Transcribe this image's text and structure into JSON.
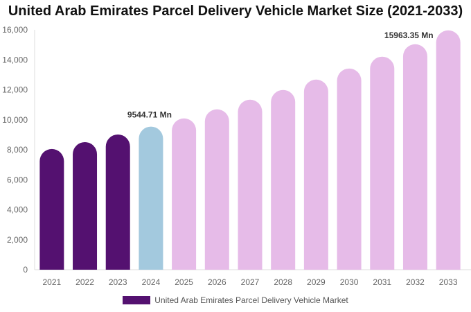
{
  "chart_data": {
    "type": "bar",
    "title": "United Arab Emirates Parcel Delivery Vehicle Market Size (2021-2033)",
    "categories": [
      "2021",
      "2022",
      "2023",
      "2024",
      "2025",
      "2026",
      "2027",
      "2028",
      "2029",
      "2030",
      "2031",
      "2032",
      "2033"
    ],
    "series": [
      {
        "name": "United Arab Emirates Parcel Delivery Vehicle Market",
        "values": [
          8050,
          8510,
          9020,
          9544.71,
          10090,
          10700,
          11340,
          11990,
          12680,
          13420,
          14210,
          15040,
          15963.35
        ]
      }
    ],
    "bar_colors": [
      "#541170",
      "#541170",
      "#541170",
      "#a3c9de",
      "#e6bbe8",
      "#e6bbe8",
      "#e6bbe8",
      "#e6bbe8",
      "#e6bbe8",
      "#e6bbe8",
      "#e6bbe8",
      "#e6bbe8",
      "#e6bbe8"
    ],
    "data_labels": {
      "3": "9544.71 Mn",
      "12": "15963.35 Mn"
    },
    "ylim": [
      0,
      16000
    ],
    "yticks": [
      "0",
      "2,000",
      "4,000",
      "6,000",
      "8,000",
      "10,000",
      "12,000",
      "14,000",
      "16,000"
    ],
    "grid": false,
    "legend_position": "bottom",
    "legend_color": "#541170"
  }
}
